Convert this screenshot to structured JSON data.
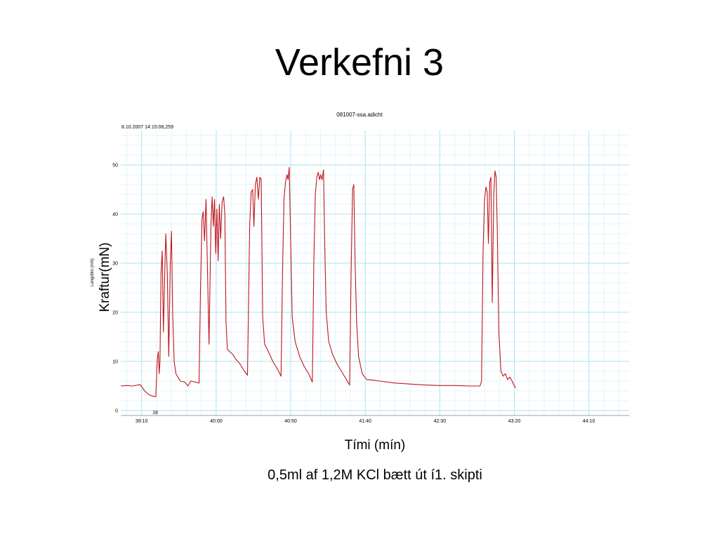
{
  "slide": {
    "title": "Verkefni 3",
    "caption": "0,5ml af 1,2M KCl bætt út í1. skipti"
  },
  "colors": {
    "trace": "#c0141b",
    "grid_minor": "#d8f3fa",
    "grid_major": "#a9e3f2",
    "background": "#ffffff"
  },
  "chart_data": {
    "type": "line",
    "title": "081007-ssa.adicht",
    "subtitle": "8.10.2007 14:15:08,259",
    "xlabel": "Tími (mín)",
    "ylabel": "Kraftur(mN)",
    "ylabel_small": "Lengdőni (mN)",
    "x_ticks": [
      "39:10",
      "40:00",
      "40:50",
      "41:40",
      "42:30",
      "43:20",
      "44:10"
    ],
    "x_tick_seconds": [
      2350,
      2400,
      2450,
      2500,
      2550,
      2600,
      2650
    ],
    "xlim_seconds": [
      2336,
      2677
    ],
    "y_ticks": [
      0,
      10,
      20,
      30,
      40,
      50
    ],
    "ylim": [
      -1,
      57
    ],
    "marker": "18",
    "grid": true,
    "series": [
      {
        "color": "#c0141b",
        "points": [
          [
            2336,
            5.0
          ],
          [
            2340,
            5.1
          ],
          [
            2344,
            5.0
          ],
          [
            2349,
            5.3
          ],
          [
            2352,
            4.0
          ],
          [
            2355,
            3.2
          ],
          [
            2358,
            2.9
          ],
          [
            2359.5,
            2.8
          ],
          [
            2360.5,
            10.5
          ],
          [
            2361.2,
            12.0
          ],
          [
            2361.8,
            7.5
          ],
          [
            2362.3,
            10.0
          ],
          [
            2363,
            28.0
          ],
          [
            2363.8,
            32.5
          ],
          [
            2364.6,
            16.0
          ],
          [
            2365.4,
            27.0
          ],
          [
            2366.2,
            36.0
          ],
          [
            2367.2,
            28.0
          ],
          [
            2368.2,
            11.0
          ],
          [
            2369.2,
            30.0
          ],
          [
            2370,
            36.5
          ],
          [
            2370.8,
            20.0
          ],
          [
            2371.8,
            10.0
          ],
          [
            2373,
            7.5
          ],
          [
            2376,
            6.0
          ],
          [
            2379,
            5.8
          ],
          [
            2381,
            5.0
          ],
          [
            2383,
            6.0
          ],
          [
            2386,
            5.8
          ],
          [
            2388.5,
            5.6
          ],
          [
            2389.5,
            25.0
          ],
          [
            2390.5,
            39.0
          ],
          [
            2391.3,
            40.5
          ],
          [
            2392.2,
            34.5
          ],
          [
            2393.2,
            43.0
          ],
          [
            2394.2,
            28.0
          ],
          [
            2395.2,
            13.5
          ],
          [
            2396.5,
            38.0
          ],
          [
            2397.3,
            43.5
          ],
          [
            2398.1,
            37.5
          ],
          [
            2398.9,
            43.0
          ],
          [
            2399.7,
            32.0
          ],
          [
            2400.5,
            41.0
          ],
          [
            2401.3,
            30.5
          ],
          [
            2402.1,
            42.0
          ],
          [
            2403,
            35.0
          ],
          [
            2404,
            42.5
          ],
          [
            2405,
            43.5
          ],
          [
            2405.8,
            40.0
          ],
          [
            2406.6,
            18.0
          ],
          [
            2407.5,
            12.5
          ],
          [
            2409,
            12.0
          ],
          [
            2411,
            11.5
          ],
          [
            2413,
            10.5
          ],
          [
            2416,
            9.5
          ],
          [
            2419,
            8.0
          ],
          [
            2421,
            7.2
          ],
          [
            2422.5,
            38.0
          ],
          [
            2423.5,
            44.5
          ],
          [
            2424.5,
            45.0
          ],
          [
            2425.3,
            37.5
          ],
          [
            2426.3,
            46.0
          ],
          [
            2427.3,
            47.5
          ],
          [
            2428.3,
            43.0
          ],
          [
            2429.3,
            47.5
          ],
          [
            2430.2,
            47.0
          ],
          [
            2431.2,
            19.0
          ],
          [
            2432.5,
            13.5
          ],
          [
            2435,
            12.0
          ],
          [
            2438,
            10.0
          ],
          [
            2441,
            8.5
          ],
          [
            2443.5,
            7.0
          ],
          [
            2444.5,
            28.0
          ],
          [
            2445.5,
            43.0
          ],
          [
            2446.5,
            46.5
          ],
          [
            2447.5,
            48.0
          ],
          [
            2448.2,
            47.0
          ],
          [
            2449,
            49.5
          ],
          [
            2450,
            34.0
          ],
          [
            2451,
            19.0
          ],
          [
            2453,
            14.0
          ],
          [
            2456,
            11.0
          ],
          [
            2459,
            9.0
          ],
          [
            2462,
            7.5
          ],
          [
            2464.5,
            5.8
          ],
          [
            2465.5,
            30.0
          ],
          [
            2466.5,
            44.0
          ],
          [
            2467.5,
            47.5
          ],
          [
            2468.5,
            48.5
          ],
          [
            2469.3,
            47.0
          ],
          [
            2470.1,
            48.0
          ],
          [
            2471,
            47.0
          ],
          [
            2472,
            49.0
          ],
          [
            2472.8,
            34.0
          ],
          [
            2473.8,
            20.0
          ],
          [
            2475.5,
            14.0
          ],
          [
            2478,
            11.5
          ],
          [
            2481,
            9.5
          ],
          [
            2484,
            8.0
          ],
          [
            2487,
            6.5
          ],
          [
            2489.5,
            5.2
          ],
          [
            2490.5,
            28.0
          ],
          [
            2491.5,
            45.0
          ],
          [
            2492.3,
            46.0
          ],
          [
            2493.2,
            30.0
          ],
          [
            2494.2,
            18.0
          ],
          [
            2495.5,
            11.0
          ],
          [
            2498,
            7.5
          ],
          [
            2501,
            6.3
          ],
          [
            2505,
            6.2
          ],
          [
            2510,
            6.0
          ],
          [
            2520,
            5.6
          ],
          [
            2530,
            5.4
          ],
          [
            2540,
            5.2
          ],
          [
            2550,
            5.1
          ],
          [
            2560,
            5.1
          ],
          [
            2570,
            5.0
          ],
          [
            2577,
            5.0
          ],
          [
            2578,
            6.0
          ],
          [
            2579,
            32.0
          ],
          [
            2580,
            43.0
          ],
          [
            2581,
            45.5
          ],
          [
            2581.8,
            44.5
          ],
          [
            2582.6,
            34.0
          ],
          [
            2583.5,
            46.5
          ],
          [
            2584.3,
            47.5
          ],
          [
            2585.2,
            22.0
          ],
          [
            2586.2,
            44.0
          ],
          [
            2587,
            48.8
          ],
          [
            2587.8,
            47.5
          ],
          [
            2588.6,
            36.0
          ],
          [
            2589.6,
            16.0
          ],
          [
            2591,
            8.0
          ],
          [
            2592.5,
            7.0
          ],
          [
            2594,
            7.5
          ],
          [
            2595.5,
            6.3
          ],
          [
            2597,
            6.8
          ],
          [
            2598.5,
            6.0
          ],
          [
            2600,
            5.0
          ],
          [
            2601,
            4.6
          ]
        ]
      }
    ]
  }
}
